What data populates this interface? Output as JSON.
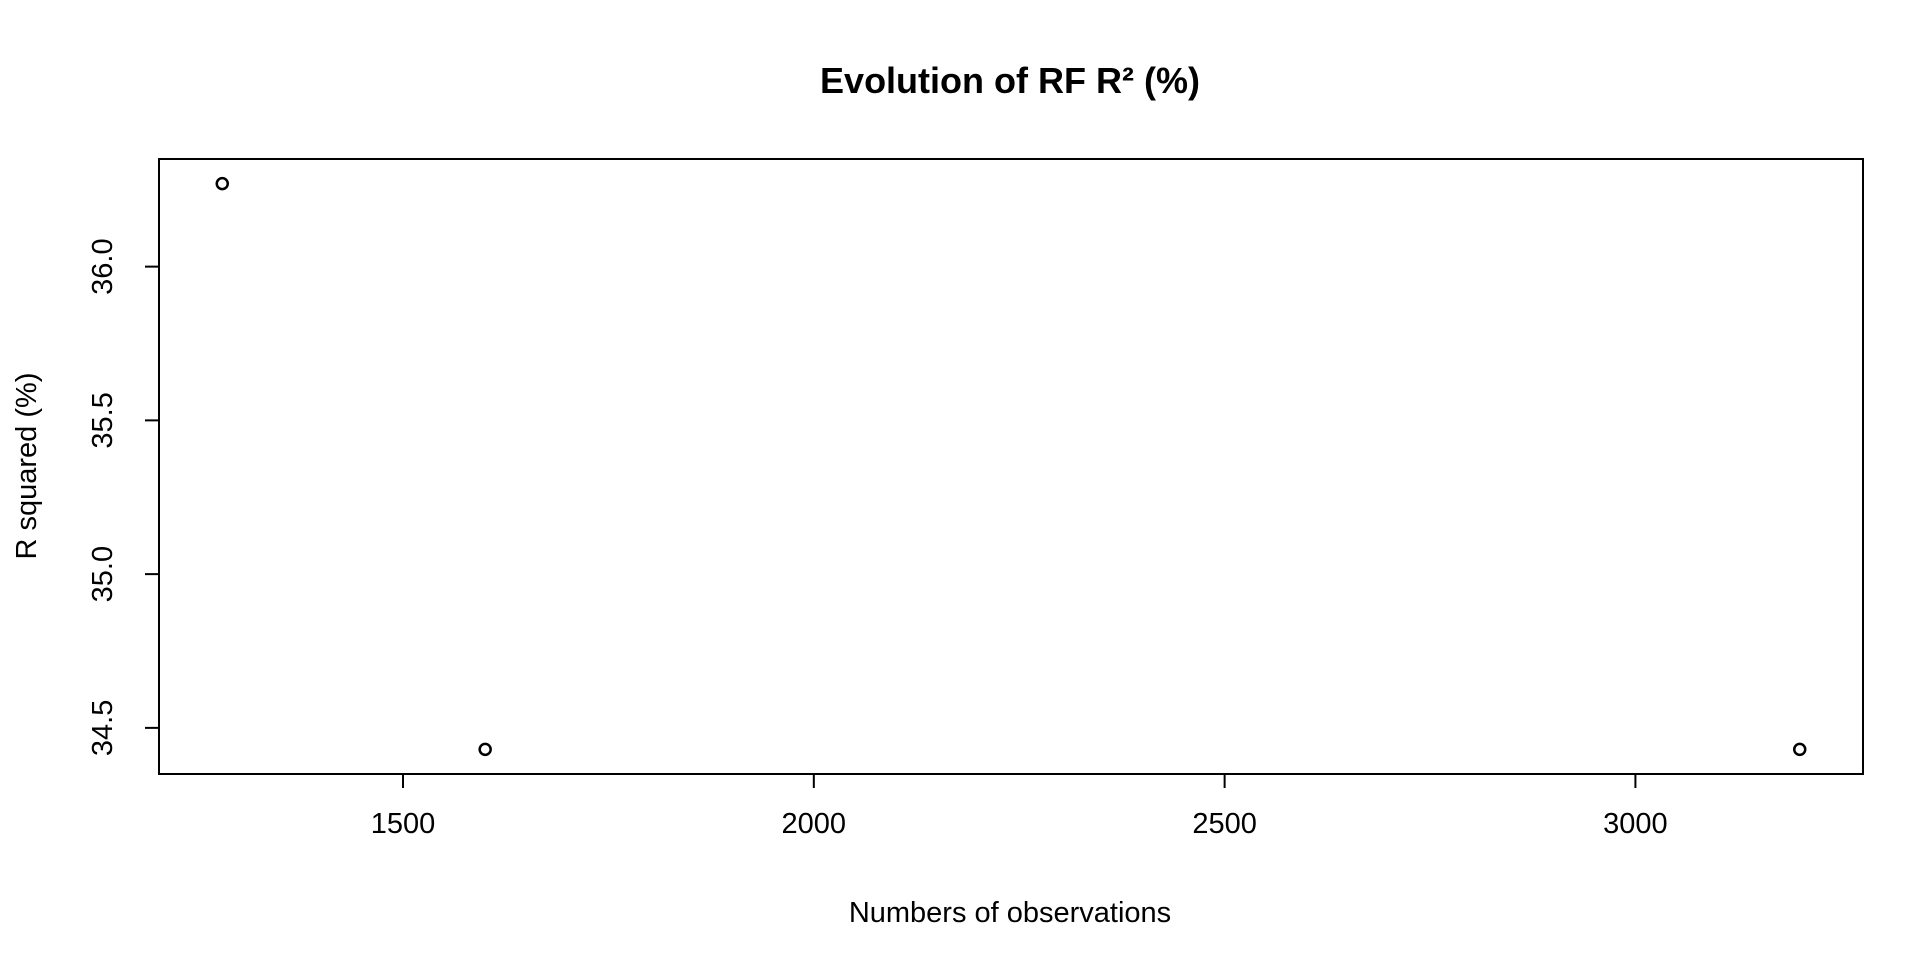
{
  "chart_data": {
    "type": "scatter",
    "title": "Evolution of RF R² (%)",
    "xlabel": "Numbers of observations",
    "ylabel": "R squared (%)",
    "x_ticks": [
      1500,
      2000,
      2500,
      3000
    ],
    "y_ticks": [
      34.5,
      35.0,
      35.5,
      36.0
    ],
    "x_tick_labels": [
      "1500",
      "2000",
      "2500",
      "3000"
    ],
    "y_tick_labels": [
      "34.5",
      "35.0",
      "35.5",
      "36.0"
    ],
    "xlim": [
      1203,
      3277
    ],
    "ylim": [
      34.35,
      36.35
    ],
    "grid": false,
    "point_shape": "open-circle",
    "series": [
      {
        "x": [
          1280,
          1600,
          3200
        ],
        "y": [
          36.27,
          34.43,
          34.43
        ]
      }
    ]
  },
  "colors": {
    "background": "#ffffff",
    "foreground": "#000000"
  }
}
